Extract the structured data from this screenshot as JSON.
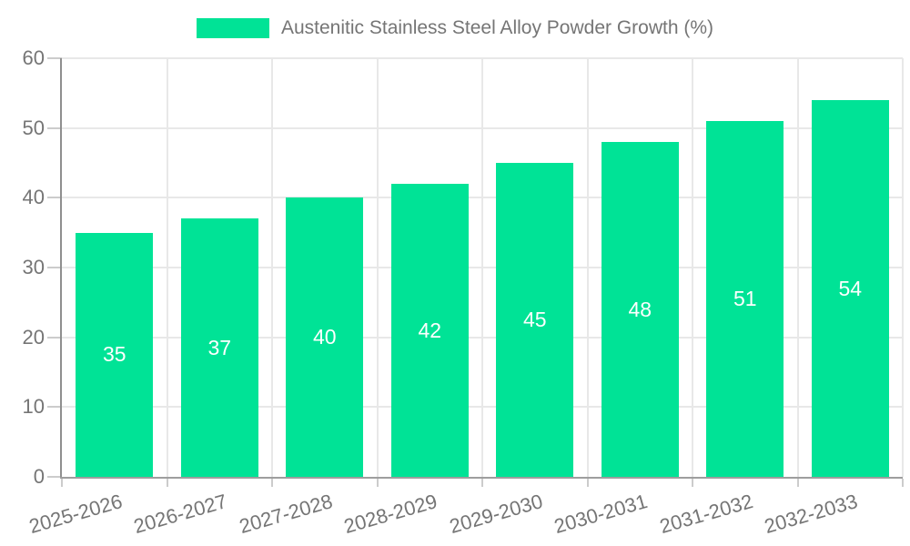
{
  "legend": {
    "label": "Austenitic Stainless Steel Alloy Powder Growth (%)"
  },
  "chart_data": {
    "type": "bar",
    "title": "",
    "legend_label": "Austenitic Stainless Steel Alloy Powder Growth (%)",
    "categories": [
      "2025-2026",
      "2026-2027",
      "2027-2028",
      "2028-2029",
      "2029-2030",
      "2030-2031",
      "2031-2032",
      "2032-2033"
    ],
    "values": [
      35,
      37,
      40,
      42,
      45,
      48,
      51,
      54
    ],
    "yticks": [
      0,
      10,
      20,
      30,
      40,
      50,
      60
    ],
    "ylim": [
      0,
      60
    ],
    "xlabel": "",
    "ylabel": "",
    "grid": true,
    "legend_position": "top",
    "bar_color": "#00E396",
    "value_label_color": "#FFFFFF",
    "axis_text_color": "#757575"
  }
}
